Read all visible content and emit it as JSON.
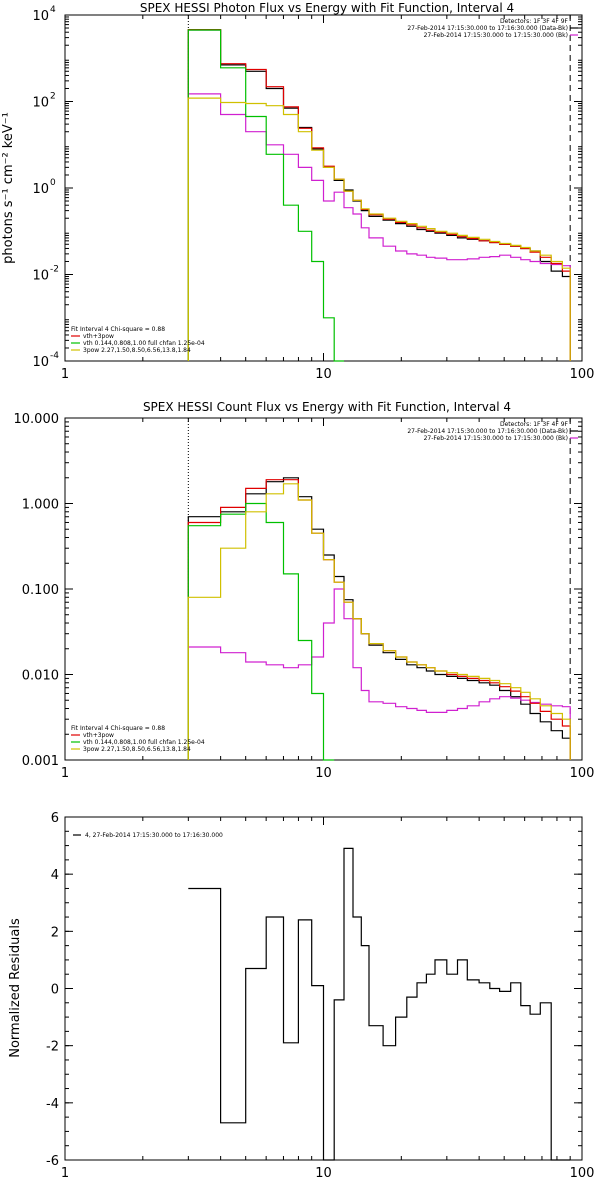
{
  "chart_data": [
    {
      "type": "line",
      "title": "SPEX HESSI Photon Flux vs Energy with Fit Function, Interval 4",
      "xlabel": "",
      "ylabel": "photons s⁻¹ cm⁻² keV⁻¹",
      "xscale": "log",
      "yscale": "log",
      "xlim": [
        1,
        100
      ],
      "ylim": [
        0.0001,
        10000
      ],
      "x_ticks": [
        "1",
        "10",
        "100"
      ],
      "y_ticks": [
        {
          "base": "10",
          "exp": "4"
        },
        {
          "base": "10",
          "exp": "2"
        },
        {
          "base": "10",
          "exp": "0"
        },
        {
          "base": "10",
          "exp": "-2"
        },
        {
          "base": "10",
          "exp": "-4"
        }
      ],
      "y_tick_values": [
        10000,
        100,
        1,
        0.01,
        0.0001
      ],
      "marker_lines": [
        {
          "x": 3.0,
          "style": "dotted"
        },
        {
          "x": 90,
          "style": "dashed"
        }
      ],
      "info_legend": [
        "Detectors: 1F 3F 4F 9F",
        "27-Feb-2014 17:15:30.000 to 17:16:30.000 (Data-Bk)",
        "27-Feb-2014 17:15:30.000 to 17:15:30.000 (Bk)"
      ],
      "info_legend_colors": [
        "",
        "#000000",
        "#d020d0"
      ],
      "fit_legend": [
        "Fit Interval  4    Chi-square = 0.88",
        "vth+3pow",
        "vth 0.144,0.808,1.00  full chfan 1.25e-04",
        "3pow 2.27,1.50,8.50,6.56,13.8,1.84"
      ],
      "fit_legend_colors": [
        "",
        "#e00000",
        "#00c000",
        "#d0c000"
      ],
      "series": [
        {
          "name": "Data-Bk",
          "color": "#000000",
          "edges": [
            3,
            4,
            5,
            6,
            7,
            8,
            9,
            10,
            11,
            12,
            13,
            14,
            15,
            17,
            19,
            21,
            23,
            25,
            27,
            30,
            33,
            36,
            40,
            44,
            48,
            53,
            58,
            63,
            69,
            76,
            84,
            90
          ],
          "values": [
            4500,
            700,
            500,
            200,
            70,
            25,
            8,
            3,
            1.5,
            0.9,
            0.5,
            0.3,
            0.22,
            0.18,
            0.15,
            0.13,
            0.11,
            0.1,
            0.09,
            0.08,
            0.07,
            0.065,
            0.06,
            0.055,
            0.05,
            0.045,
            0.04,
            0.035,
            0.02,
            0.012,
            0.009
          ]
        },
        {
          "name": "Bk",
          "color": "#d020d0",
          "edges": [
            3,
            4,
            5,
            6,
            7,
            8,
            9,
            10,
            11,
            12,
            13,
            14,
            15,
            17,
            19,
            21,
            23,
            25,
            27,
            30,
            33,
            36,
            40,
            44,
            48,
            53,
            58,
            63,
            69,
            76,
            84,
            90
          ],
          "values": [
            150,
            50,
            20,
            10,
            6,
            3,
            1.5,
            0.5,
            0.8,
            0.35,
            0.25,
            0.12,
            0.07,
            0.045,
            0.035,
            0.03,
            0.028,
            0.025,
            0.024,
            0.022,
            0.022,
            0.023,
            0.025,
            0.026,
            0.028,
            0.025,
            0.022,
            0.02,
            0.018,
            0.017,
            0.016
          ]
        },
        {
          "name": "vth+3pow",
          "color": "#e00000",
          "edges": [
            3,
            4,
            5,
            6,
            7,
            8,
            9,
            10,
            11,
            12,
            13,
            14,
            15,
            17,
            19,
            21,
            23,
            25,
            27,
            30,
            33,
            36,
            40,
            44,
            48,
            53,
            58,
            63,
            69,
            76,
            84,
            90
          ],
          "values": [
            4600,
            750,
            550,
            220,
            75,
            24,
            8.5,
            3.2,
            1.6,
            0.85,
            0.52,
            0.32,
            0.24,
            0.19,
            0.16,
            0.14,
            0.12,
            0.105,
            0.095,
            0.085,
            0.075,
            0.068,
            0.06,
            0.055,
            0.05,
            0.045,
            0.04,
            0.033,
            0.025,
            0.018,
            0.012
          ]
        },
        {
          "name": "vth",
          "color": "#00c000",
          "edges": [
            3,
            4,
            5,
            6,
            7,
            8,
            9,
            10,
            11,
            12
          ],
          "values": [
            4500,
            600,
            45,
            6,
            0.4,
            0.1,
            0.02,
            0.001,
            0.0001
          ]
        },
        {
          "name": "3pow",
          "color": "#d0c000",
          "edges": [
            3,
            4,
            5,
            6,
            7,
            8,
            9,
            10,
            11,
            12,
            13,
            14,
            15,
            17,
            19,
            21,
            23,
            25,
            27,
            30,
            33,
            36,
            40,
            44,
            48,
            53,
            58,
            63,
            69,
            76,
            84,
            90
          ],
          "values": [
            120,
            95,
            90,
            80,
            50,
            20,
            7.5,
            3,
            1.6,
            0.85,
            0.52,
            0.33,
            0.25,
            0.2,
            0.17,
            0.15,
            0.13,
            0.115,
            0.1,
            0.09,
            0.08,
            0.072,
            0.065,
            0.058,
            0.052,
            0.047,
            0.042,
            0.035,
            0.028,
            0.02,
            0.014
          ]
        }
      ]
    },
    {
      "type": "line",
      "title": "SPEX HESSI Count Flux vs Energy with Fit Function, Interval 4",
      "xlabel": "",
      "ylabel": "",
      "xscale": "log",
      "yscale": "log",
      "xlim": [
        1,
        100
      ],
      "ylim": [
        0.001,
        10
      ],
      "x_ticks": [
        "1",
        "10",
        "100"
      ],
      "y_ticks": [
        "10.000",
        "1.000",
        "0.100",
        "0.010",
        "0.001"
      ],
      "y_tick_values": [
        10,
        1,
        0.1,
        0.01,
        0.001
      ],
      "marker_lines": [
        {
          "x": 3.0,
          "style": "dotted"
        },
        {
          "x": 90,
          "style": "dashed"
        }
      ],
      "info_legend": [
        "Detectors: 1F 3F 4F 9F",
        "27-Feb-2014 17:15:30.000 to 17:16:30.000 (Data-Bk)",
        "27-Feb-2014 17:15:30.000 to 17:15:30.000 (Bk)"
      ],
      "info_legend_colors": [
        "",
        "#000000",
        "#d020d0"
      ],
      "fit_legend": [
        "Fit Interval  4    Chi-square = 0.88",
        "vth+3pow",
        "vth 0.144,0.808,1.00  full chfan 1.25e-04",
        "3pow 2.27,1.50,8.50,6.56,13.8,1.84"
      ],
      "fit_legend_colors": [
        "",
        "#e00000",
        "#00c000",
        "#d0c000"
      ],
      "series": [
        {
          "name": "Data-Bk",
          "color": "#000000",
          "edges": [
            3,
            4,
            5,
            6,
            7,
            8,
            9,
            10,
            11,
            12,
            13,
            14,
            15,
            17,
            19,
            21,
            23,
            25,
            27,
            30,
            33,
            36,
            40,
            44,
            48,
            53,
            58,
            63,
            69,
            76,
            84,
            90
          ],
          "values": [
            0.7,
            0.8,
            1.3,
            1.8,
            2.0,
            1.2,
            0.5,
            0.25,
            0.14,
            0.075,
            0.045,
            0.03,
            0.022,
            0.018,
            0.015,
            0.013,
            0.012,
            0.011,
            0.01,
            0.0095,
            0.009,
            0.0085,
            0.008,
            0.0075,
            0.0065,
            0.0055,
            0.0045,
            0.0035,
            0.0028,
            0.0022,
            0.0018
          ]
        },
        {
          "name": "Bk",
          "color": "#d020d0",
          "edges": [
            3,
            4,
            5,
            6,
            7,
            8,
            9,
            10,
            11,
            12,
            13,
            14,
            15,
            17,
            19,
            21,
            23,
            25,
            27,
            30,
            33,
            36,
            40,
            44,
            48,
            53,
            58,
            63,
            69,
            76,
            84,
            90
          ],
          "values": [
            0.021,
            0.018,
            0.014,
            0.013,
            0.012,
            0.013,
            0.016,
            0.04,
            0.1,
            0.045,
            0.012,
            0.0065,
            0.0048,
            0.0046,
            0.0042,
            0.004,
            0.0038,
            0.0036,
            0.0036,
            0.0038,
            0.004,
            0.0043,
            0.0048,
            0.0052,
            0.0055,
            0.0053,
            0.005,
            0.0047,
            0.0045,
            0.0043,
            0.0042
          ]
        },
        {
          "name": "vth+3pow",
          "color": "#e00000",
          "edges": [
            3,
            4,
            5,
            6,
            7,
            8,
            9,
            10,
            11,
            12,
            13,
            14,
            15,
            17,
            19,
            21,
            23,
            25,
            27,
            30,
            33,
            36,
            40,
            44,
            48,
            53,
            58,
            63,
            69,
            76,
            84,
            90
          ],
          "values": [
            0.6,
            0.9,
            1.5,
            1.9,
            1.9,
            1.1,
            0.45,
            0.22,
            0.12,
            0.07,
            0.045,
            0.03,
            0.023,
            0.019,
            0.016,
            0.014,
            0.013,
            0.012,
            0.011,
            0.01,
            0.0095,
            0.009,
            0.0085,
            0.008,
            0.0072,
            0.0064,
            0.0055,
            0.0046,
            0.0037,
            0.003,
            0.0025
          ]
        },
        {
          "name": "vth",
          "color": "#00c000",
          "edges": [
            3,
            4,
            5,
            6,
            7,
            8,
            9,
            10,
            11
          ],
          "values": [
            0.55,
            0.75,
            1.0,
            0.6,
            0.15,
            0.025,
            0.006,
            0.001
          ]
        },
        {
          "name": "3pow",
          "color": "#d0c000",
          "edges": [
            3,
            4,
            5,
            6,
            7,
            8,
            9,
            10,
            11,
            12,
            13,
            14,
            15,
            17,
            19,
            21,
            23,
            25,
            27,
            30,
            33,
            36,
            40,
            44,
            48,
            53,
            58,
            63,
            69,
            76,
            84,
            90
          ],
          "values": [
            0.08,
            0.3,
            0.8,
            1.3,
            1.7,
            1.1,
            0.45,
            0.22,
            0.12,
            0.07,
            0.045,
            0.03,
            0.023,
            0.019,
            0.016,
            0.014,
            0.013,
            0.012,
            0.011,
            0.0105,
            0.01,
            0.0095,
            0.009,
            0.0085,
            0.0078,
            0.007,
            0.0062,
            0.0052,
            0.0043,
            0.0035,
            0.003
          ]
        }
      ]
    },
    {
      "type": "line",
      "title": "",
      "xlabel": "",
      "ylabel": "Normalized Residuals",
      "xscale": "log",
      "yscale": "linear",
      "xlim": [
        1,
        100
      ],
      "ylim": [
        -6,
        6
      ],
      "x_ticks": [
        "1",
        "10",
        "100"
      ],
      "y_ticks": [
        "6",
        "4",
        "2",
        "0",
        "-2",
        "-4",
        "-6"
      ],
      "y_tick_values": [
        6,
        4,
        2,
        0,
        -2,
        -4,
        -6
      ],
      "info_legend": [
        "4, 27-Feb-2014 17:15:30.000 to 17:16:30.000"
      ],
      "info_legend_colors": [
        "#000000"
      ],
      "series": [
        {
          "name": "4, 27-Feb-2014 17:15:30.000 to 17:16:30.000",
          "color": "#000000",
          "edges": [
            3,
            4,
            5,
            6,
            7,
            8,
            9,
            10,
            11,
            12,
            13,
            14,
            15,
            17,
            19,
            21,
            23,
            25,
            27,
            30,
            33,
            36,
            40,
            44,
            48,
            53,
            58,
            63,
            69,
            76,
            84,
            90
          ],
          "values": [
            3.5,
            -4.7,
            0.7,
            2.5,
            -1.9,
            2.4,
            0.1,
            -6.1,
            -0.4,
            4.9,
            2.5,
            1.5,
            -1.3,
            -2.0,
            -1.0,
            -0.3,
            0.2,
            0.5,
            1.0,
            0.5,
            1.0,
            0.3,
            0.2,
            0.0,
            -0.1,
            0.2,
            -0.6,
            -0.9,
            -0.5,
            -6.5,
            -6.5
          ]
        }
      ]
    }
  ]
}
